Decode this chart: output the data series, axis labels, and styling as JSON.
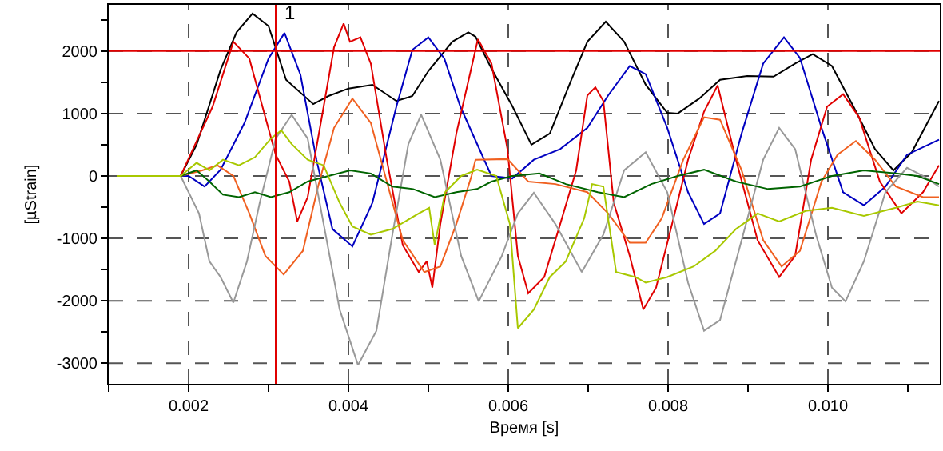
{
  "chart_data": {
    "type": "line",
    "xlabel": "Время [s]",
    "ylabel": "[µStrain]",
    "xlim": [
      0.001,
      0.0114
    ],
    "ylim": [
      -3330,
      2740
    ],
    "xticks": [
      {
        "value": 0.001,
        "label": null
      },
      0.002,
      {
        "value": 0.003,
        "label": null
      },
      0.004,
      {
        "value": 0.005,
        "label": null
      },
      0.006,
      {
        "value": 0.007,
        "label": null
      },
      0.008,
      {
        "value": 0.009,
        "label": null
      },
      {
        "value": 0.01,
        "label": "0.010"
      },
      {
        "value": 0.011,
        "label": null
      }
    ],
    "yticks": [
      -3000,
      {
        "value": -2500,
        "label": null
      },
      -2000,
      {
        "value": -1500,
        "label": null
      },
      -1000,
      {
        "value": -500,
        "label": null
      },
      0,
      {
        "value": 500,
        "label": null
      },
      1000,
      {
        "value": 1500,
        "label": null
      },
      2000,
      {
        "value": 2500,
        "label": null
      }
    ],
    "grid": true,
    "marker": "none",
    "line_style": "solid",
    "ref_lines": [
      {
        "axis": "y",
        "value": 2000,
        "color": "#e00000"
      },
      {
        "axis": "x",
        "value": 0.00309,
        "color": "#e00000"
      }
    ],
    "annotations": [
      {
        "text": "1",
        "x": 0.00309,
        "y": 2600
      }
    ],
    "series": [
      {
        "color": "#000000",
        "x": [
          0.0011,
          0.0019,
          0.0021,
          0.0024,
          0.0026,
          0.0028,
          0.003,
          0.00322,
          0.00356,
          0.00375,
          0.004,
          0.0043,
          0.0046,
          0.0048,
          0.005,
          0.0053,
          0.0055,
          0.00559,
          0.00579,
          0.00605,
          0.00629,
          0.00652,
          0.00679,
          0.00699,
          0.00722,
          0.00745,
          0.00772,
          0.00799,
          0.00812,
          0.00839,
          0.00865,
          0.00899,
          0.00932,
          0.00959,
          0.00981,
          0.01005,
          0.01032,
          0.01059,
          0.01082,
          0.01105,
          0.01139
        ],
        "values": [
          0,
          0,
          500,
          1700,
          2300,
          2600,
          2400,
          1540,
          1150,
          1280,
          1400,
          1460,
          1200,
          1280,
          1680,
          2150,
          2300,
          2230,
          1720,
          1120,
          500,
          680,
          1540,
          2150,
          2470,
          2150,
          1460,
          1010,
          1000,
          1240,
          1540,
          1600,
          1590,
          1800,
          1950,
          1760,
          1110,
          430,
          90,
          380,
          1200
        ]
      },
      {
        "color": "#0000c0",
        "x": [
          0.0011,
          0.002,
          0.0022,
          0.0024,
          0.0027,
          0.003,
          0.0032,
          0.0034,
          0.0036,
          0.0038,
          0.00405,
          0.0043,
          0.0046,
          0.0048,
          0.005,
          0.0052,
          0.0054,
          0.00579,
          0.00605,
          0.00632,
          0.00665,
          0.00699,
          0.00725,
          0.00752,
          0.00772,
          0.00799,
          0.00825,
          0.00845,
          0.00865,
          0.00892,
          0.00919,
          0.00945,
          0.00965,
          0.00992,
          0.01019,
          0.01045,
          0.01072,
          0.01099,
          0.01139
        ],
        "values": [
          0,
          0,
          -170,
          100,
          850,
          1880,
          2290,
          1620,
          260,
          -850,
          -1130,
          -430,
          1110,
          2020,
          2220,
          1880,
          1110,
          0,
          -40,
          260,
          430,
          770,
          1290,
          1760,
          1630,
          770,
          -260,
          -770,
          -600,
          680,
          1800,
          2220,
          1890,
          770,
          -260,
          -470,
          -170,
          340,
          580
        ]
      },
      {
        "color": "#e00000",
        "x": [
          0.0011,
          0.0019,
          0.0023,
          0.00256,
          0.00276,
          0.00296,
          0.00309,
          0.00326,
          0.00336,
          0.00349,
          0.00369,
          0.00382,
          0.00394,
          0.00402,
          0.00415,
          0.00428,
          0.00448,
          0.00468,
          0.00488,
          0.00498,
          0.00505,
          0.00515,
          0.00535,
          0.00552,
          0.00562,
          0.00579,
          0.00599,
          0.00612,
          0.00625,
          0.00645,
          0.00665,
          0.00685,
          0.00699,
          0.00709,
          0.00719,
          0.00732,
          0.00752,
          0.00769,
          0.00785,
          0.00805,
          0.00825,
          0.00845,
          0.00862,
          0.00885,
          0.00912,
          0.00939,
          0.00959,
          0.00979,
          0.00999,
          0.01019,
          0.01039,
          0.01065,
          0.01092,
          0.01119,
          0.01139
        ],
        "values": [
          0,
          0,
          1110,
          2150,
          1880,
          940,
          340,
          -90,
          -730,
          -340,
          1110,
          2060,
          2440,
          2150,
          2220,
          1800,
          260,
          -1110,
          -1540,
          -1370,
          -1790,
          -770,
          680,
          1630,
          2190,
          1800,
          430,
          -1280,
          -1880,
          -1620,
          -770,
          90,
          1290,
          1420,
          1200,
          -430,
          -1280,
          -2140,
          -1790,
          -770,
          260,
          1030,
          1450,
          260,
          -1030,
          -1620,
          -1280,
          260,
          1110,
          1310,
          940,
          -90,
          -600,
          -260,
          170
        ]
      },
      {
        "color": "#f06020",
        "x": [
          0.0011,
          0.0019,
          0.00217,
          0.00236,
          0.00256,
          0.00276,
          0.00296,
          0.00319,
          0.00343,
          0.00362,
          0.00382,
          0.00405,
          0.00428,
          0.00448,
          0.00468,
          0.00495,
          0.00515,
          0.00535,
          0.00554,
          0.00559,
          0.00599,
          0.00625,
          0.00659,
          0.00699,
          0.00725,
          0.00752,
          0.00772,
          0.00792,
          0.00819,
          0.00845,
          0.00865,
          0.00892,
          0.00919,
          0.00942,
          0.00965,
          0.00992,
          0.01012,
          0.01035,
          0.01059,
          0.01085,
          0.01119,
          0.01139
        ],
        "values": [
          0,
          0,
          90,
          170,
          0,
          -600,
          -1280,
          -1580,
          -1200,
          -170,
          770,
          1240,
          850,
          -90,
          -1030,
          -1540,
          -1450,
          -770,
          0,
          260,
          270,
          -90,
          -130,
          -260,
          -600,
          -1070,
          -1070,
          -680,
          260,
          940,
          900,
          90,
          -1030,
          -1450,
          -1200,
          -90,
          340,
          560,
          260,
          -170,
          -340,
          -340
        ]
      },
      {
        "color": "#999999",
        "x": [
          0.0011,
          0.0019,
          0.00213,
          0.00226,
          0.0024,
          0.00256,
          0.00273,
          0.00289,
          0.00309,
          0.00329,
          0.00349,
          0.00369,
          0.00389,
          0.00412,
          0.00435,
          0.00455,
          0.00475,
          0.00491,
          0.00515,
          0.00541,
          0.00563,
          0.00592,
          0.00612,
          0.00632,
          0.00659,
          0.00692,
          0.00719,
          0.00745,
          0.00772,
          0.00799,
          0.00825,
          0.00845,
          0.00865,
          0.00892,
          0.00919,
          0.00939,
          0.00959,
          0.00985,
          0.01005,
          0.01022,
          0.01045,
          0.01072,
          0.01099,
          0.01119,
          0.01139
        ],
        "values": [
          0,
          0,
          -600,
          -1370,
          -1620,
          -2030,
          -1370,
          -430,
          600,
          980,
          600,
          -770,
          -2140,
          -3030,
          -2480,
          -940,
          510,
          980,
          260,
          -1280,
          -2010,
          -1280,
          -600,
          -270,
          -770,
          -1540,
          -940,
          90,
          380,
          -260,
          -1710,
          -2480,
          -2310,
          -1030,
          260,
          770,
          430,
          -940,
          -1790,
          -2010,
          -1370,
          -260,
          130,
          0,
          -170
        ]
      },
      {
        "color": "#006400",
        "x": [
          0.0011,
          0.0019,
          0.0021,
          0.00226,
          0.00243,
          0.00263,
          0.00283,
          0.00303,
          0.00326,
          0.00349,
          0.00375,
          0.00402,
          0.00428,
          0.00455,
          0.00481,
          0.00508,
          0.00535,
          0.00561,
          0.00579,
          0.00605,
          0.00639,
          0.00672,
          0.00712,
          0.00745,
          0.00779,
          0.00812,
          0.00845,
          0.00885,
          0.00925,
          0.00965,
          0.01005,
          0.01045,
          0.01085,
          0.01112,
          0.01139
        ],
        "values": [
          0,
          0,
          90,
          -90,
          -300,
          -340,
          -260,
          -340,
          -260,
          -90,
          0,
          90,
          40,
          -170,
          -210,
          -340,
          -260,
          -210,
          -90,
          0,
          40,
          -130,
          -260,
          -340,
          -130,
          0,
          100,
          -90,
          -210,
          -170,
          0,
          90,
          40,
          0,
          -130
        ]
      },
      {
        "color": "#a8c800",
        "x": [
          0.0011,
          0.0019,
          0.0021,
          0.00226,
          0.00243,
          0.00263,
          0.00283,
          0.00303,
          0.00316,
          0.00329,
          0.00349,
          0.00369,
          0.00389,
          0.00405,
          0.00428,
          0.00455,
          0.00488,
          0.00501,
          0.00508,
          0.00521,
          0.00541,
          0.00561,
          0.00585,
          0.00602,
          0.00612,
          0.00632,
          0.00652,
          0.00672,
          0.00695,
          0.00705,
          0.00719,
          0.00735,
          0.00759,
          0.00772,
          0.00799,
          0.00832,
          0.00859,
          0.00885,
          0.00912,
          0.00939,
          0.00972,
          0.01005,
          0.01045,
          0.01085,
          0.01112,
          0.01139
        ],
        "values": [
          0,
          0,
          210,
          90,
          260,
          170,
          300,
          600,
          730,
          510,
          260,
          170,
          -430,
          -810,
          -940,
          -850,
          -600,
          -510,
          -1110,
          -260,
          0,
          100,
          0,
          -770,
          -2440,
          -2140,
          -1620,
          -1370,
          -680,
          -130,
          -170,
          -1540,
          -1620,
          -1710,
          -1620,
          -1450,
          -1200,
          -850,
          -600,
          -730,
          -560,
          -510,
          -640,
          -510,
          -410,
          -470
        ]
      }
    ]
  }
}
